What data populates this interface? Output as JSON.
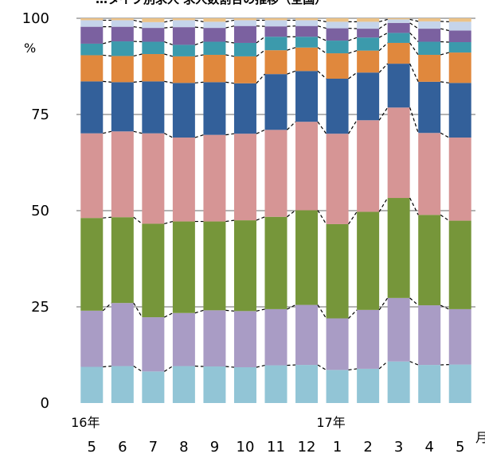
{
  "chart_data": {
    "type": "bar",
    "stacked": "percent",
    "title": "…タイプ別求人 求人数割合の推移（全国）",
    "ylabel": "%",
    "ylim": [
      0,
      100
    ],
    "yticks": [
      "0",
      "25",
      "50",
      "75",
      "100"
    ],
    "grid": true,
    "x_year_labels": [
      {
        "text": "16年",
        "at": 0
      },
      {
        "text": "17年",
        "at": 8
      }
    ],
    "x_unit": "月",
    "categories": [
      "5",
      "6",
      "7",
      "8",
      "9",
      "10",
      "11",
      "12",
      "1",
      "2",
      "3",
      "4",
      "5"
    ],
    "series": [
      {
        "color": "#92C5D6",
        "values": [
          9.4,
          9.6,
          8.2,
          9.6,
          9.5,
          9.3,
          9.8,
          9.9,
          8.6,
          8.9,
          10.8,
          9.9,
          10.0
        ]
      },
      {
        "color": "#A99CC5",
        "values": [
          14.6,
          16.4,
          14.1,
          13.8,
          14.6,
          14.6,
          14.6,
          15.6,
          13.4,
          15.3,
          16.5,
          15.5,
          14.4
        ]
      },
      {
        "color": "#76963A",
        "values": [
          24.1,
          22.3,
          24.3,
          23.8,
          23.1,
          23.6,
          24.0,
          24.6,
          24.5,
          25.5,
          26.0,
          23.5,
          23.0
        ]
      },
      {
        "color": "#D69595",
        "values": [
          22.0,
          22.3,
          23.5,
          21.8,
          22.5,
          22.5,
          22.6,
          23.0,
          23.5,
          23.8,
          23.5,
          21.3,
          21.6
        ]
      },
      {
        "color": "#33609A",
        "values": [
          13.5,
          12.8,
          13.5,
          14.2,
          13.7,
          13.1,
          14.5,
          13.2,
          14.3,
          12.4,
          11.4,
          13.3,
          14.2
        ]
      },
      {
        "color": "#E0883D",
        "values": [
          6.8,
          6.8,
          7.1,
          6.9,
          7.1,
          7.0,
          6.2,
          6.1,
          6.6,
          5.7,
          5.4,
          7.0,
          7.9
        ]
      },
      {
        "color": "#3C9AAC",
        "values": [
          3.0,
          3.8,
          3.2,
          3.0,
          3.4,
          3.5,
          3.5,
          2.8,
          3.3,
          3.4,
          2.6,
          3.4,
          2.7
        ]
      },
      {
        "color": "#7B61A0",
        "values": [
          4.4,
          3.8,
          3.6,
          4.6,
          3.6,
          4.4,
          2.7,
          2.8,
          3.2,
          2.3,
          2.6,
          3.4,
          3.0
        ]
      },
      {
        "color": "#C5D4EA",
        "values": [
          1.7,
          1.7,
          1.5,
          1.8,
          1.6,
          1.5,
          1.6,
          1.5,
          1.7,
          1.8,
          0.9,
          1.9,
          2.3
        ]
      },
      {
        "color": "#ECC287",
        "values": [
          0.5,
          0.5,
          1.0,
          0.5,
          0.9,
          0.5,
          0.5,
          0.5,
          0.9,
          0.9,
          0.3,
          0.8,
          0.9
        ]
      }
    ]
  }
}
